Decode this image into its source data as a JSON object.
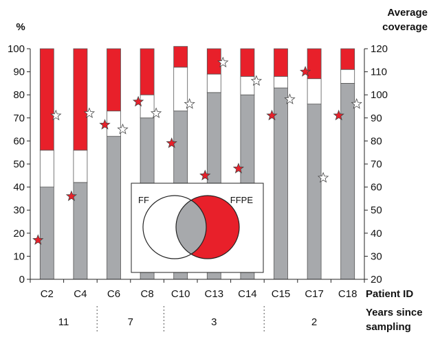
{
  "chart_data": {
    "type": "bar",
    "subtype": "stacked-bar-with-markers",
    "categories": [
      "C2",
      "C4",
      "C6",
      "C8",
      "C10",
      "C13",
      "C14",
      "C15",
      "C17",
      "C18"
    ],
    "series": [
      {
        "name": "FF",
        "color": "#ffffff",
        "role": "middle-segment",
        "values": [
          16,
          14,
          11,
          10,
          19,
          8,
          8,
          5,
          11,
          6
        ]
      },
      {
        "name": "FFPE",
        "color": "#e8202a",
        "role": "top-segment",
        "values": [
          44,
          44,
          27,
          20,
          9,
          11,
          12,
          12,
          13,
          9
        ]
      },
      {
        "color": "#a7a9ac",
        "role": "bottom-segment",
        "values": [
          40,
          42,
          62,
          70,
          73,
          81,
          80,
          83,
          76,
          85
        ]
      }
    ],
    "markers": [
      {
        "color": "#ffffff",
        "values": [
          91,
          92,
          85,
          92,
          96,
          114,
          106,
          98,
          64,
          96
        ]
      },
      {
        "color": "#e8202a",
        "values": [
          37,
          56,
          87,
          97,
          79,
          65,
          68,
          91,
          110,
          91
        ]
      }
    ],
    "y_left": {
      "label": "%",
      "ylim": [
        0,
        100
      ],
      "ticks": [
        0,
        10,
        20,
        30,
        40,
        50,
        60,
        70,
        80,
        90,
        100
      ]
    },
    "y_right": {
      "label_lines": [
        "Average",
        "coverage"
      ],
      "ylim": [
        20,
        120
      ],
      "ticks": [
        20,
        30,
        40,
        50,
        60,
        70,
        80,
        90,
        100,
        110,
        120
      ]
    },
    "x_label": "Patient ID",
    "groups": {
      "label_lines": [
        "Years since",
        "sampling"
      ],
      "items": [
        {
          "label": "11",
          "categories": [
            "C2",
            "C4"
          ]
        },
        {
          "label": "7",
          "categories": [
            "C6",
            "C8"
          ]
        },
        {
          "label": "3",
          "categories": [
            "C10",
            "C13",
            "C14"
          ]
        },
        {
          "label": "2",
          "categories": [
            "C15",
            "C17",
            "C18"
          ]
        }
      ]
    },
    "inset": {
      "left_label": "FF",
      "right_label": "FFPE"
    },
    "grid": false,
    "legend": "inset venn diagram, bottom-center"
  }
}
